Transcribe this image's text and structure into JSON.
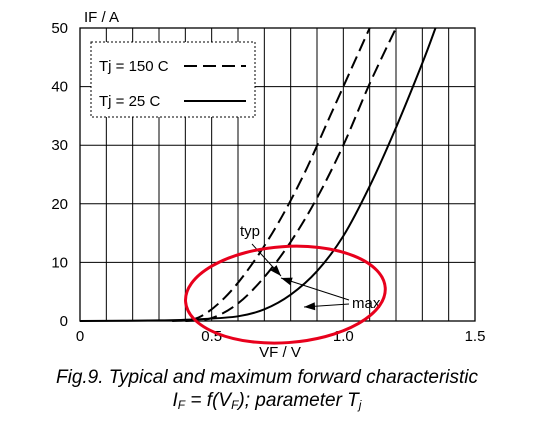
{
  "chart_data": {
    "type": "line",
    "xlabel": "VF / V",
    "ylabel": "IF / A",
    "xlim": [
      0,
      1.5
    ],
    "ylim": [
      0,
      50
    ],
    "x_ticks": [
      "0",
      "0.5",
      "1.0",
      "1.5"
    ],
    "y_ticks": [
      "0",
      "10",
      "20",
      "30",
      "40",
      "50"
    ],
    "grid": true,
    "legend": [
      {
        "label": "Tj = 150 C",
        "style": "dashed"
      },
      {
        "label": "Tj = 25 C",
        "style": "solid"
      }
    ],
    "legend_position": "top-left",
    "annotations": [
      "typ",
      "max"
    ],
    "series": [
      {
        "style": "solid",
        "points": [
          [
            0,
            0
          ],
          [
            0.3,
            0.1
          ],
          [
            0.45,
            0.3
          ],
          [
            0.6,
            0.8
          ],
          [
            0.7,
            2
          ],
          [
            0.8,
            4.5
          ],
          [
            0.9,
            8.5
          ],
          [
            1.0,
            14.5
          ],
          [
            1.1,
            23
          ],
          [
            1.2,
            33
          ],
          [
            1.3,
            44
          ],
          [
            1.35,
            50
          ]
        ]
      },
      {
        "style": "dashed",
        "points": [
          [
            0.4,
            0
          ],
          [
            0.5,
            0.5
          ],
          [
            0.6,
            3
          ],
          [
            0.7,
            7.5
          ],
          [
            0.8,
            13.5
          ],
          [
            0.9,
            21
          ],
          [
            1.0,
            30
          ],
          [
            1.1,
            40.5
          ],
          [
            1.2,
            50
          ]
        ]
      },
      {
        "style": "dashed",
        "points": [
          [
            0.35,
            0
          ],
          [
            0.45,
            0.6
          ],
          [
            0.55,
            4
          ],
          [
            0.65,
            9.5
          ],
          [
            0.75,
            16.5
          ],
          [
            0.85,
            25
          ],
          [
            0.95,
            35
          ],
          [
            1.05,
            45
          ],
          [
            1.1,
            50
          ]
        ]
      }
    ],
    "highlight": {
      "shape": "ellipse",
      "color": "#e8001c",
      "cx": 0.78,
      "cy": 4.5,
      "rx": 0.38,
      "ry": 8.2
    }
  },
  "caption": {
    "line1": "Fig.9.  Typical and maximum forward characteristic",
    "line2_parts": [
      "I",
      "F",
      " = f(V",
      "F",
      "); parameter T",
      "j"
    ]
  }
}
